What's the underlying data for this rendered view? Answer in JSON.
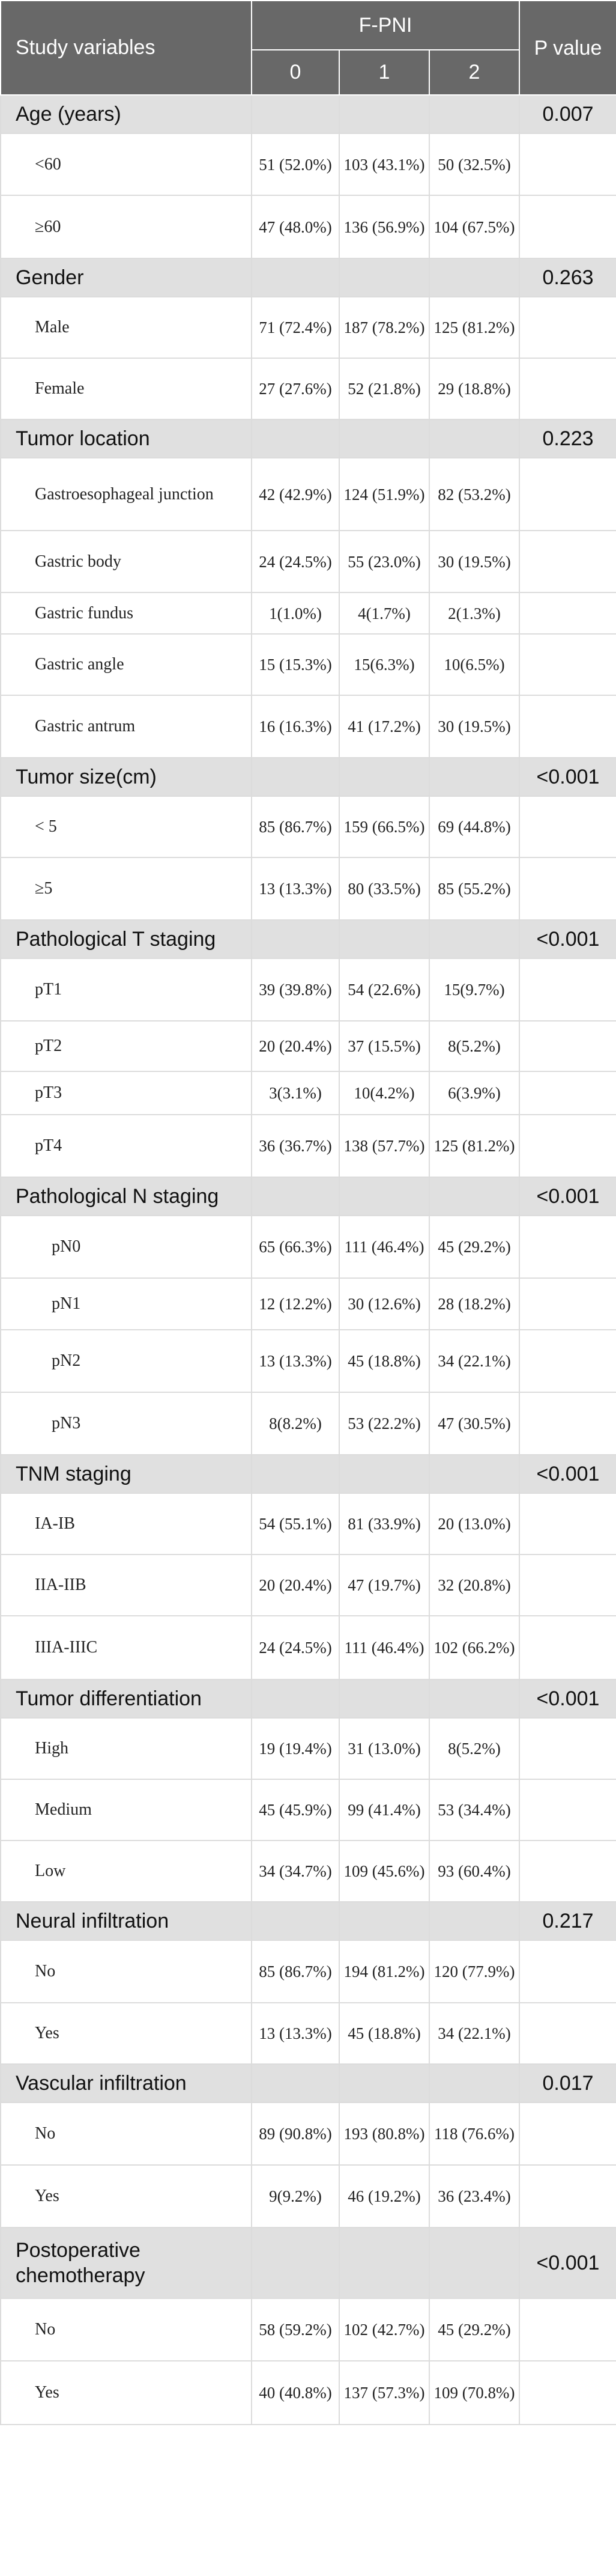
{
  "header": {
    "study_variables": "Study variables",
    "fpni": "F-PNI",
    "p_value": "P value",
    "levels": [
      "0",
      "1",
      "2"
    ]
  },
  "sections": [
    {
      "name": "Age (years)",
      "p": "0.007",
      "rows": [
        {
          "label": "<60",
          "vals": [
            "51 (52.0%)",
            "103 (43.1%)",
            "50 (32.5%)"
          ]
        },
        {
          "label": "≥60",
          "vals": [
            "47 (48.0%)",
            "136 (56.9%)",
            "104 (67.5%)"
          ]
        }
      ]
    },
    {
      "name": "Gender",
      "p": "0.263",
      "rows": [
        {
          "label": "Male",
          "vals": [
            "71 (72.4%)",
            "187 (78.2%)",
            "125 (81.2%)"
          ]
        },
        {
          "label": "Female",
          "vals": [
            "27 (27.6%)",
            "52 (21.8%)",
            "29 (18.8%)"
          ]
        }
      ]
    },
    {
      "name": "Tumor location",
      "p": "0.223",
      "rows": [
        {
          "label": "Gastroesophageal junction",
          "vals": [
            "42 (42.9%)",
            "124 (51.9%)",
            "82 (53.2%)"
          ]
        },
        {
          "label": "Gastric body",
          "vals": [
            "24 (24.5%)",
            "55 (23.0%)",
            "30 (19.5%)"
          ]
        },
        {
          "label": "Gastric fundus",
          "vals": [
            "1(1.0%)",
            "4(1.7%)",
            "2(1.3%)"
          ]
        },
        {
          "label": "Gastric angle",
          "vals": [
            "15 (15.3%)",
            "15(6.3%)",
            "10(6.5%)"
          ]
        },
        {
          "label": "Gastric antrum",
          "vals": [
            "16 (16.3%)",
            "41 (17.2%)",
            "30 (19.5%)"
          ]
        }
      ]
    },
    {
      "name": "Tumor size(cm)",
      "p": "<0.001",
      "rows": [
        {
          "label": "< 5",
          "vals": [
            "85 (86.7%)",
            "159 (66.5%)",
            "69 (44.8%)"
          ]
        },
        {
          "label": "≥5",
          "vals": [
            "13 (13.3%)",
            "80 (33.5%)",
            "85 (55.2%)"
          ]
        }
      ]
    },
    {
      "name": "Pathological T staging",
      "p": "<0.001",
      "rows": [
        {
          "label": "pT1",
          "vals": [
            "39 (39.8%)",
            "54 (22.6%)",
            "15(9.7%)"
          ]
        },
        {
          "label": "pT2",
          "vals": [
            "20 (20.4%)",
            "37 (15.5%)",
            "8(5.2%)"
          ]
        },
        {
          "label": "pT3",
          "vals": [
            "3(3.1%)",
            "10(4.2%)",
            "6(3.9%)"
          ]
        },
        {
          "label": "pT4",
          "vals": [
            "36 (36.7%)",
            "138 (57.7%)",
            "125 (81.2%)"
          ]
        }
      ]
    },
    {
      "name": "Pathological N staging",
      "p": "<0.001",
      "indent": true,
      "rows": [
        {
          "label": "pN0",
          "vals": [
            "65 (66.3%)",
            "111 (46.4%)",
            "45 (29.2%)"
          ]
        },
        {
          "label": "pN1",
          "vals": [
            "12 (12.2%)",
            "30 (12.6%)",
            "28 (18.2%)"
          ]
        },
        {
          "label": "pN2",
          "vals": [
            "13 (13.3%)",
            "45 (18.8%)",
            "34 (22.1%)"
          ]
        },
        {
          "label": "pN3",
          "vals": [
            "8(8.2%)",
            "53 (22.2%)",
            "47 (30.5%)"
          ]
        }
      ]
    },
    {
      "name": "TNM staging",
      "p": "<0.001",
      "rows": [
        {
          "label": "IA-IB",
          "vals": [
            "54 (55.1%)",
            "81 (33.9%)",
            "20 (13.0%)"
          ]
        },
        {
          "label": "IIA-IIB",
          "vals": [
            "20 (20.4%)",
            "47 (19.7%)",
            "32 (20.8%)"
          ]
        },
        {
          "label": "IIIA-IIIC",
          "vals": [
            "24 (24.5%)",
            "111 (46.4%)",
            "102 (66.2%)"
          ]
        }
      ]
    },
    {
      "name": "Tumor differentiation",
      "p": "<0.001",
      "rows": [
        {
          "label": "High",
          "vals": [
            "19 (19.4%)",
            "31 (13.0%)",
            "8(5.2%)"
          ]
        },
        {
          "label": "Medium",
          "vals": [
            "45 (45.9%)",
            "99 (41.4%)",
            "53 (34.4%)"
          ]
        },
        {
          "label": "Low",
          "vals": [
            "34 (34.7%)",
            "109 (45.6%)",
            "93 (60.4%)"
          ]
        }
      ]
    },
    {
      "name": "Neural infiltration",
      "p": "0.217",
      "rows": [
        {
          "label": "No",
          "vals": [
            "85 (86.7%)",
            "194 (81.2%)",
            "120 (77.9%)"
          ]
        },
        {
          "label": "Yes",
          "vals": [
            "13 (13.3%)",
            "45 (18.8%)",
            "34 (22.1%)"
          ]
        }
      ]
    },
    {
      "name": "Vascular infiltration",
      "p": "0.017",
      "rows": [
        {
          "label": "No",
          "vals": [
            "89 (90.8%)",
            "193 (80.8%)",
            "118 (76.6%)"
          ]
        },
        {
          "label": "Yes",
          "vals": [
            "9(9.2%)",
            "46 (19.2%)",
            "36 (23.4%)"
          ]
        }
      ]
    },
    {
      "name": "Postoperative chemotherapy",
      "p": "<0.001",
      "rows": [
        {
          "label": "No",
          "vals": [
            "58 (59.2%)",
            "102 (42.7%)",
            "45 (29.2%)"
          ]
        },
        {
          "label": "Yes",
          "vals": [
            "40 (40.8%)",
            "137 (57.3%)",
            "109 (70.8%)"
          ]
        }
      ]
    }
  ]
}
